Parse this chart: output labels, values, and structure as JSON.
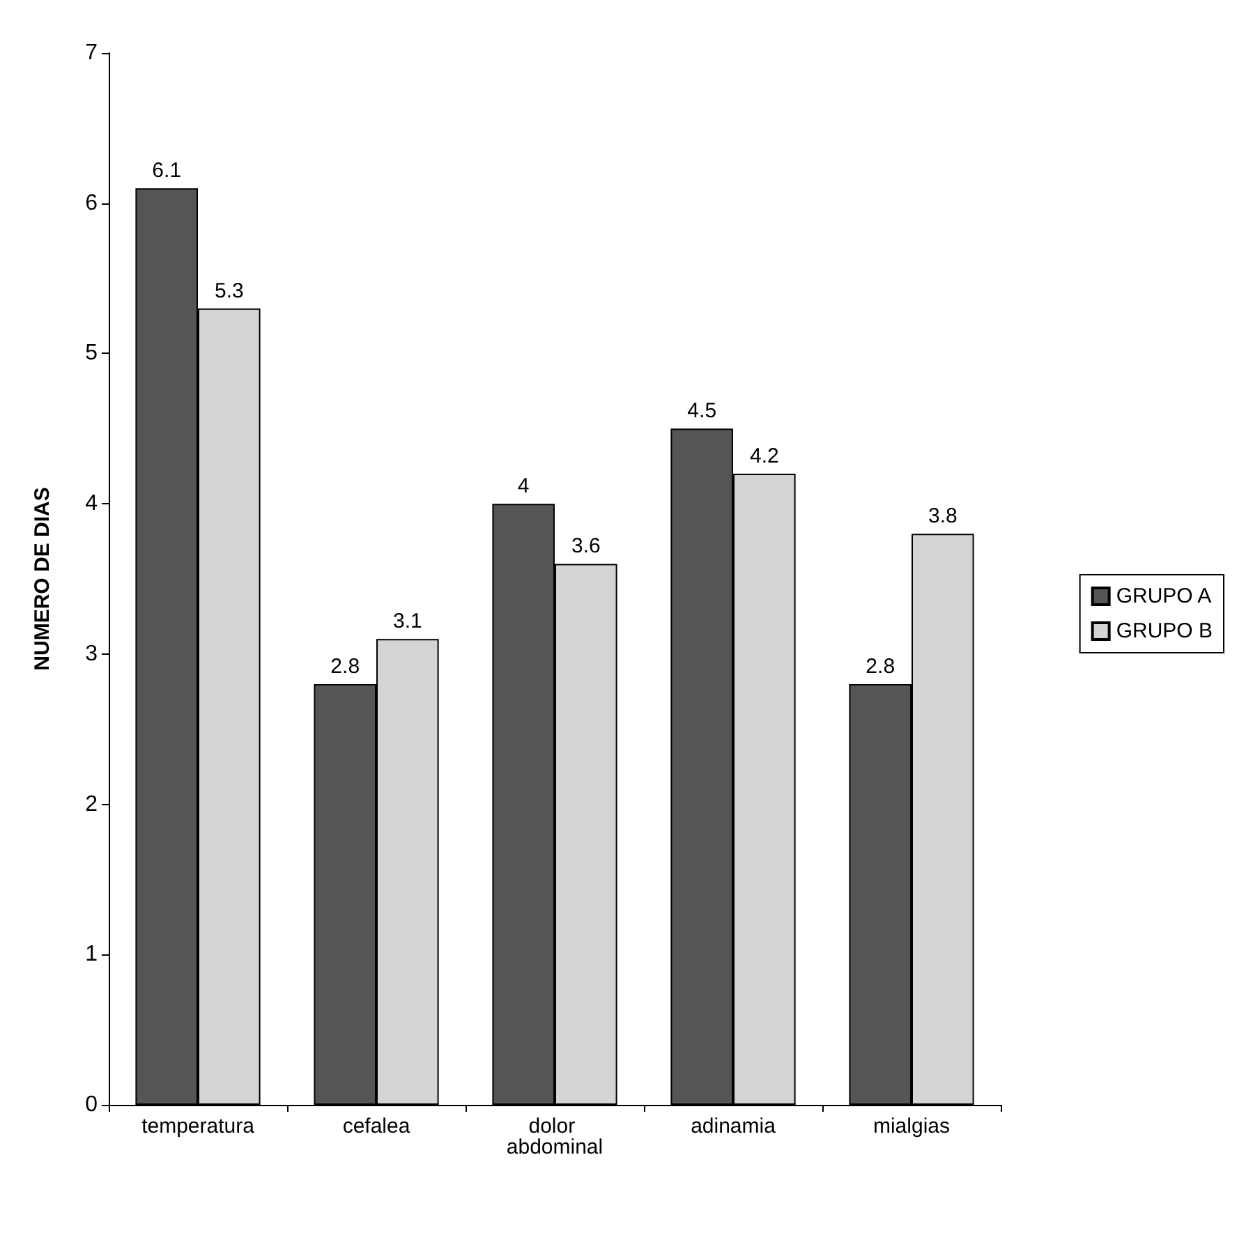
{
  "chart_data": {
    "type": "bar",
    "ylabel": "NUMERO DE DIAS",
    "categories": [
      "temperatura",
      "cefalea",
      "dolor abdominal",
      "adinamia",
      "mialgias"
    ],
    "series": [
      {
        "name": "GRUPO A",
        "color": "#555555",
        "values": [
          6.1,
          2.8,
          4,
          4.5,
          2.8
        ]
      },
      {
        "name": "GRUPO B",
        "color": "#d4d4d4",
        "values": [
          5.3,
          3.1,
          3.6,
          4.2,
          3.8
        ]
      }
    ],
    "ylim": [
      0,
      7
    ],
    "yticks": [
      0,
      1,
      2,
      3,
      4,
      5,
      6,
      7
    ],
    "grid": false,
    "legend": "right",
    "data_labels": true
  }
}
